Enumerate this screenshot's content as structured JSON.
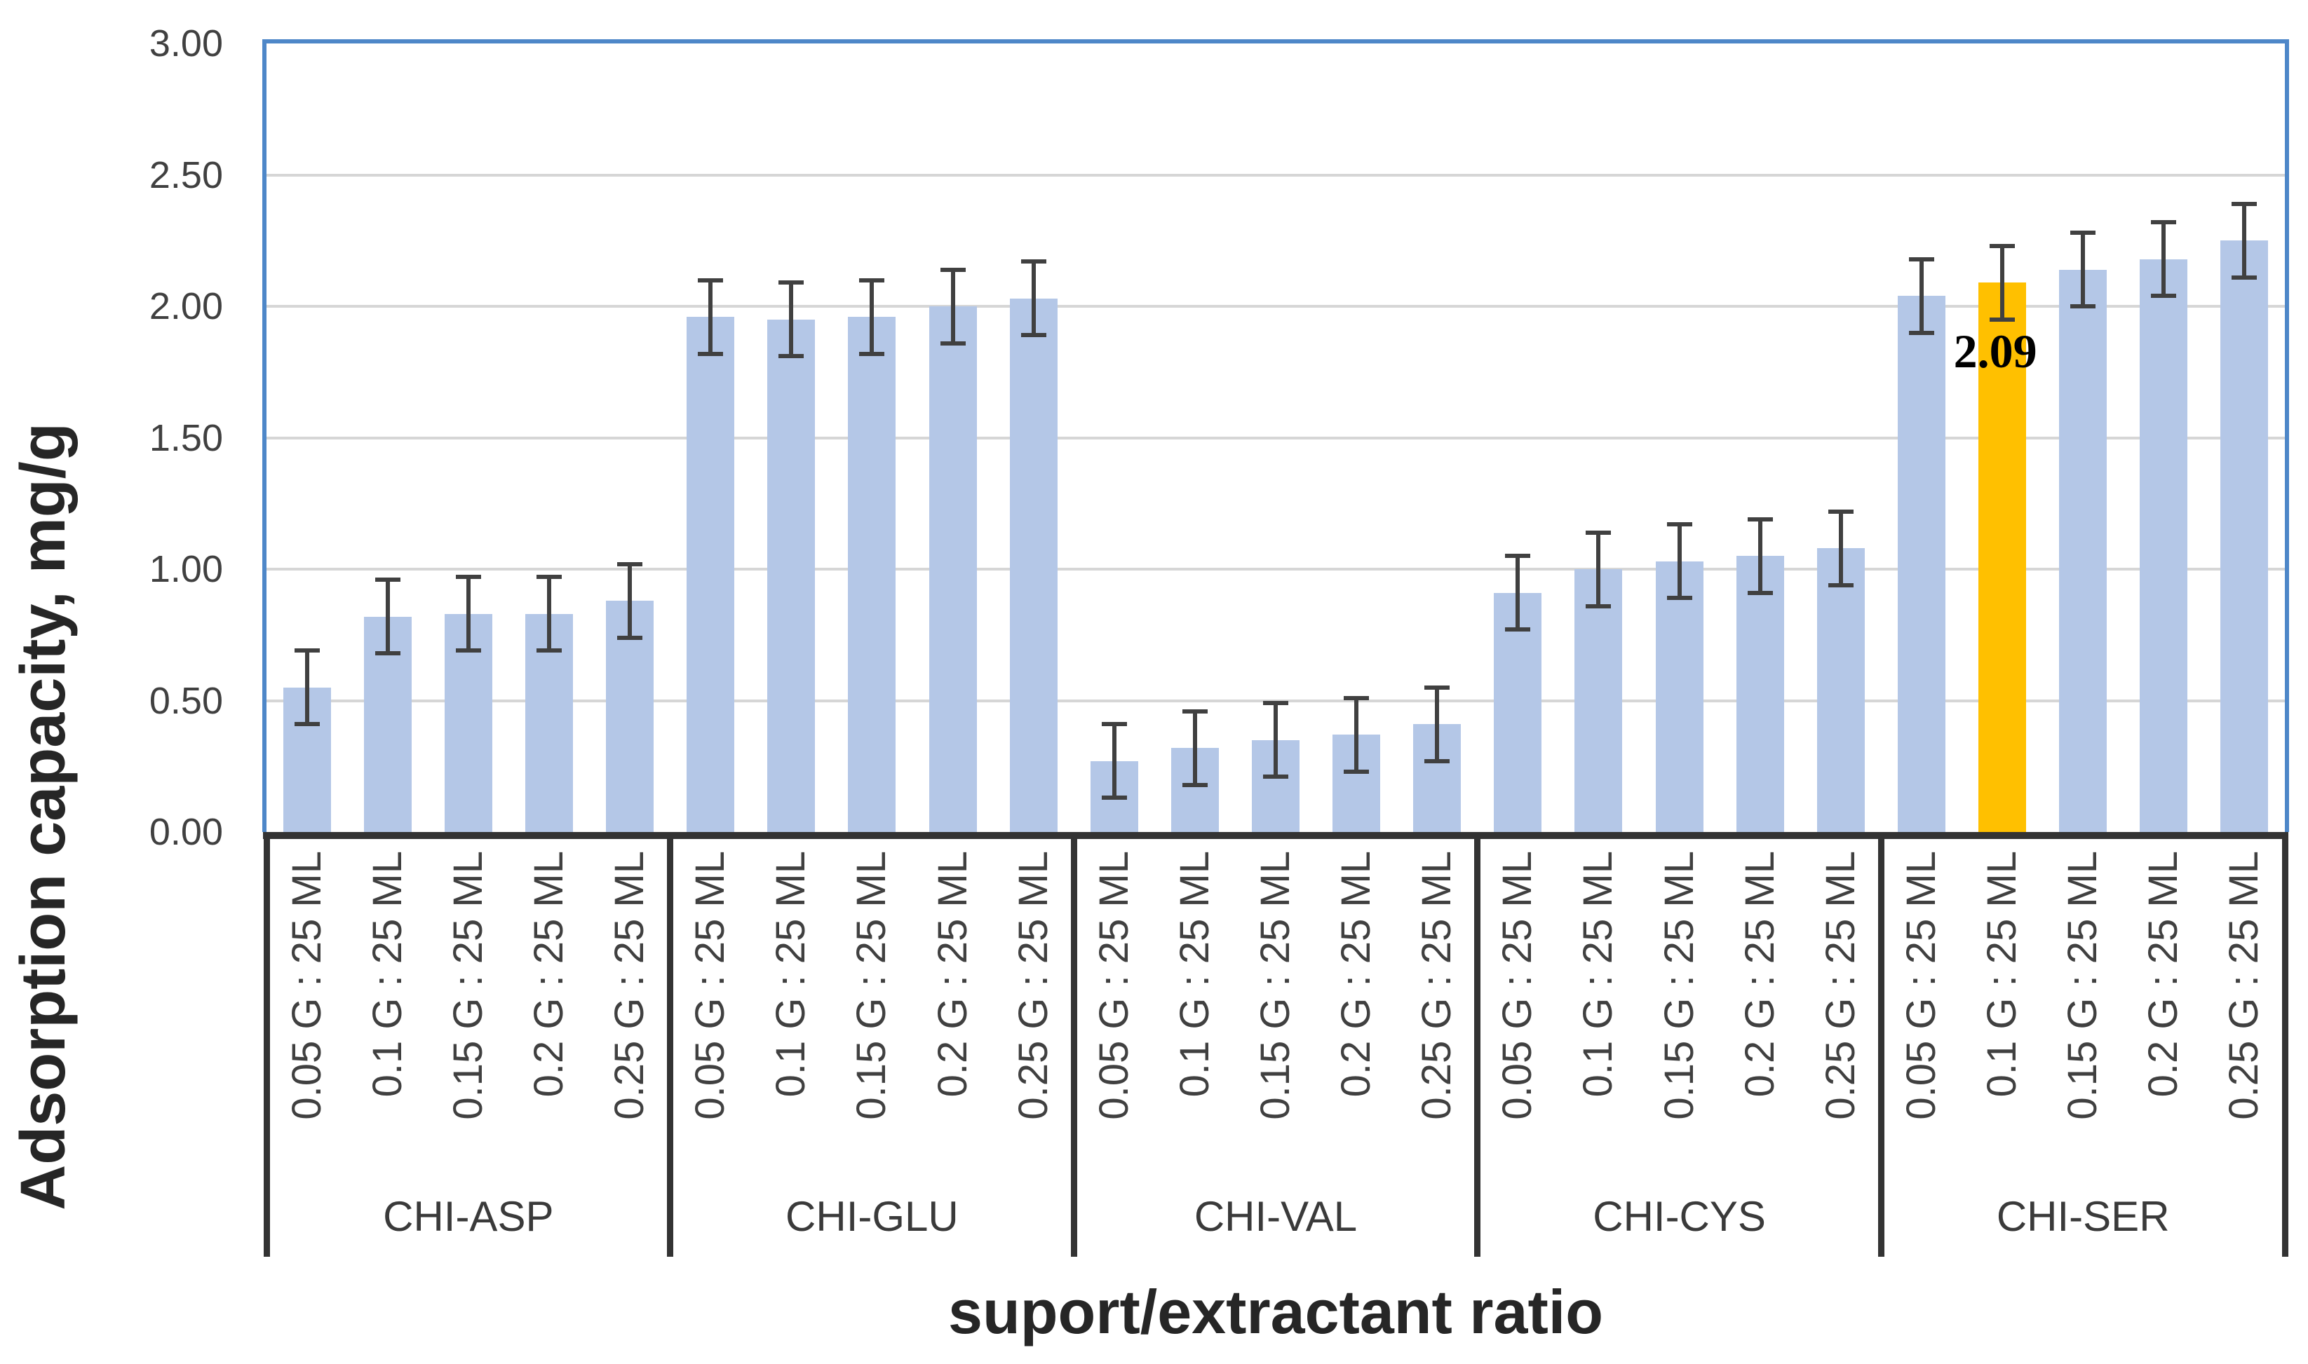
{
  "chart_data": {
    "type": "bar",
    "title": "",
    "xlabel": "suport/extractant ratio",
    "ylabel": "Adsorption capacity, mg/g",
    "ylim": [
      0,
      3
    ],
    "ytick_step": 0.5,
    "ytick_labels": [
      "3.00",
      "2.50",
      "2.00",
      "1.50",
      "1.00",
      "0.50",
      "0.00"
    ],
    "grid": true,
    "legend": "none",
    "groups": [
      "CHI-ASP",
      "CHI-GLU",
      "CHI-VAL",
      "CHI-CYS",
      "CHI-SER"
    ],
    "categories": [
      "0.05 G : 25 ML",
      "0.1 G : 25 ML",
      "0.15 G : 25 ML",
      "0.2 G : 25 ML",
      "0.25 G : 25 ML"
    ],
    "series": [
      {
        "group": "CHI-ASP",
        "values": [
          0.55,
          0.82,
          0.83,
          0.83,
          0.88
        ],
        "errors": [
          0.14,
          0.14,
          0.14,
          0.14,
          0.14
        ]
      },
      {
        "group": "CHI-GLU",
        "values": [
          1.96,
          1.95,
          1.96,
          2.0,
          2.03
        ],
        "errors": [
          0.14,
          0.14,
          0.14,
          0.14,
          0.14
        ]
      },
      {
        "group": "CHI-VAL",
        "values": [
          0.27,
          0.32,
          0.35,
          0.37,
          0.41
        ],
        "errors": [
          0.14,
          0.14,
          0.14,
          0.14,
          0.14
        ]
      },
      {
        "group": "CHI-CYS",
        "values": [
          0.91,
          1.0,
          1.03,
          1.05,
          1.08
        ],
        "errors": [
          0.14,
          0.14,
          0.14,
          0.14,
          0.14
        ]
      },
      {
        "group": "CHI-SER",
        "values": [
          2.04,
          2.09,
          2.14,
          2.18,
          2.25
        ],
        "errors": [
          0.14,
          0.14,
          0.14,
          0.14,
          0.14
        ]
      }
    ],
    "highlight": {
      "group_index": 4,
      "category_index": 1,
      "value_label": "2.09",
      "color": "#FFC000"
    },
    "colors": {
      "bar": "#B4C7E7",
      "highlight": "#FFC000",
      "error_bar": "#404040",
      "gridline": "#D6D6D6",
      "plot_border": "#4E87C8",
      "axis_line": "#333333",
      "tick_text": "#404040",
      "group_text": "#3A3A3A",
      "title_text": "#262626",
      "data_label_text": "#000000"
    }
  }
}
